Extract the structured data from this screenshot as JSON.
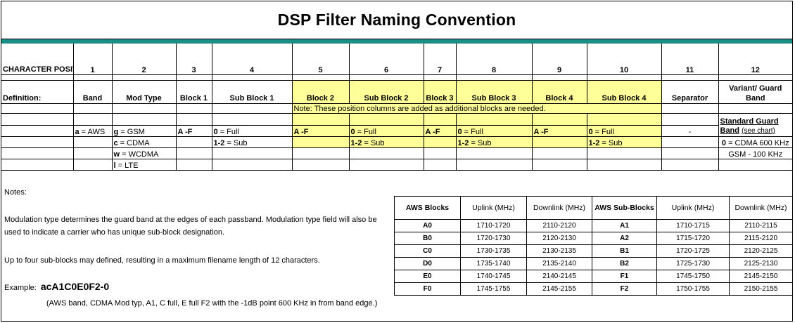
{
  "title": "DSP Filter Naming Convention",
  "header": {
    "label": "CHARACTER POSITION:",
    "positions": [
      "1",
      "2",
      "3",
      "4",
      "5",
      "6",
      "7",
      "8",
      "9",
      "10",
      "11",
      "12"
    ]
  },
  "definitions": {
    "label": "Definition:",
    "items": [
      "Band",
      "Mod Type",
      "Block 1",
      "Sub Block 1",
      "Block 2",
      "Sub Block 2",
      "Block 3",
      "Sub Block 3",
      "Block 4",
      "Sub Block 4",
      "Separator",
      "Variant/ Guard Band"
    ]
  },
  "added_note": "Note: These position columns are added as additional blocks are needed.",
  "values": {
    "band": {
      "key": "a",
      "text": " = AWS"
    },
    "mod": [
      {
        "key": "g",
        "text": " = GSM"
      },
      {
        "key": "c",
        "text": " = CDMA"
      },
      {
        "key": "w",
        "text": " = WCDMA"
      },
      {
        "key": "l",
        "text": " = LTE"
      }
    ],
    "block": "A -F",
    "sub_full": {
      "key": "0",
      "text": " = Full"
    },
    "sub_sub": {
      "key": "1-2",
      "text": " = Sub"
    },
    "separator": "-",
    "guard_title": "Standard Guard Band",
    "guard_link": "(see chart)",
    "guard_cdma": {
      "key": "0",
      "text": " = CDMA 600 KHz"
    },
    "guard_gsm": "GSM - 100 KHz"
  },
  "notes": {
    "heading": "Notes:",
    "line1": "Modulation type determines the guard band at the edges of each passband.  Modulation type field will also be",
    "line2": "used to indicate a carrier who has unique sub-block designation.",
    "line3": "Up to four sub-blocks may defined, resulting in a maximum filename length of 12 characters.",
    "example_label": "Example:",
    "example_code": "acA1C0E0F2-0",
    "example_desc": "(AWS band, CDMA Mod typ, A1, C full, E full F2 with the -1dB point 600 KHz in from band edge.)"
  },
  "aws_table": {
    "headers": [
      "AWS Blocks",
      "Uplink (MHz)",
      "Downlink (MHz)",
      "AWS Sub-Blocks",
      "Uplink (MHz)",
      "Downlink (MHz)"
    ],
    "rows": [
      [
        "A0",
        "1710-1720",
        "2110-2120",
        "A1",
        "1710-1715",
        "2110-2115"
      ],
      [
        "B0",
        "1720-1730",
        "2120-2130",
        "A2",
        "1715-1720",
        "2115-2120"
      ],
      [
        "C0",
        "1730-1735",
        "2130-2135",
        "B1",
        "1720-1725",
        "2120-2125"
      ],
      [
        "D0",
        "1735-1740",
        "2135-2140",
        "B2",
        "1725-1730",
        "2125-2130"
      ],
      [
        "E0",
        "1740-1745",
        "2140-2145",
        "F1",
        "1745-1750",
        "2145-2150"
      ],
      [
        "F0",
        "1745-1755",
        "2145-2155",
        "F2",
        "1750-1755",
        "2150-2155"
      ]
    ]
  }
}
